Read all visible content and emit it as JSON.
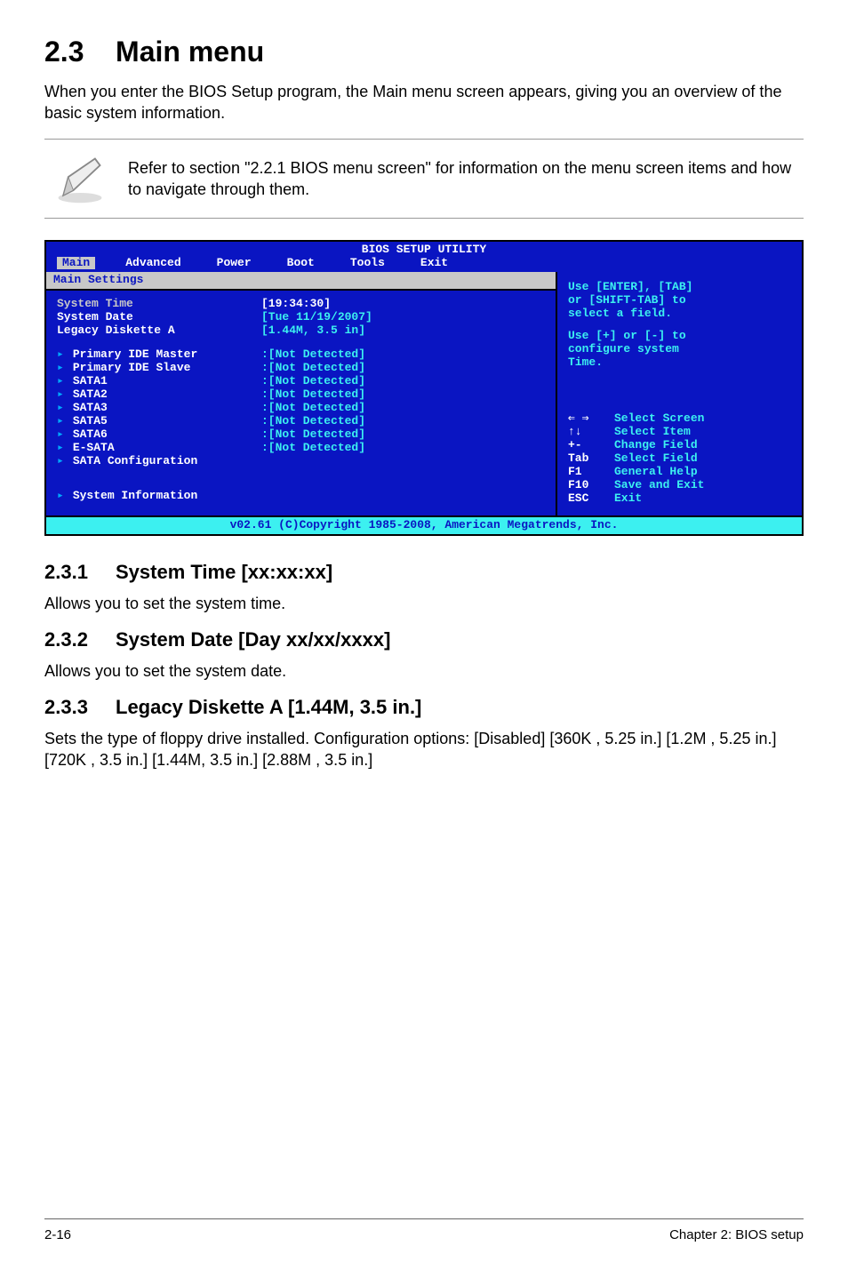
{
  "heading": {
    "num": "2.3",
    "title": "Main menu"
  },
  "intro": "When you enter the BIOS Setup program, the Main menu screen appears, giving you an overview of the basic system information.",
  "note": "Refer to section \"2.2.1 BIOS menu screen\" for information on the menu screen items and how to navigate through them.",
  "bios": {
    "title": "BIOS SETUP UTILITY",
    "tabs": [
      "Main",
      "Advanced",
      "Power",
      "Boot",
      "Tools",
      "Exit"
    ],
    "active_tab": "Main",
    "panel_header": "Main Settings",
    "rows_top": [
      {
        "label": "System Time",
        "value": "[19:34:30]",
        "selected": true
      },
      {
        "label": "System Date",
        "value": "[Tue 11/19/2007]"
      },
      {
        "label": "Legacy Diskette A",
        "value": "[1.44M, 3.5 in]"
      }
    ],
    "rows_list": [
      {
        "label": "Primary IDE Master",
        "value": ":[Not Detected]"
      },
      {
        "label": "Primary IDE Slave",
        "value": ":[Not Detected]"
      },
      {
        "label": "SATA1",
        "value": ":[Not Detected]"
      },
      {
        "label": "SATA2",
        "value": ":[Not Detected]"
      },
      {
        "label": "SATA3",
        "value": ":[Not Detected]"
      },
      {
        "label": "SATA5",
        "value": ":[Not Detected]"
      },
      {
        "label": "SATA6",
        "value": ":[Not Detected]"
      },
      {
        "label": "E-SATA",
        "value": ":[Not Detected]"
      },
      {
        "label": "SATA Configuration",
        "value": ""
      }
    ],
    "rows_bottom": [
      {
        "label": "System Information",
        "value": ""
      }
    ],
    "help_top1": "Use [ENTER], [TAB]",
    "help_top2": "or [SHIFT-TAB] to",
    "help_top3": "select a field.",
    "help_mid1": "Use [+] or [-] to",
    "help_mid2": "configure system",
    "help_mid3": "Time.",
    "help_keys": [
      {
        "k": "⇐ ⇒",
        "d": "Select Screen"
      },
      {
        "k": "↑↓",
        "d": "Select Item"
      },
      {
        "k": "+-",
        "d": "Change Field"
      },
      {
        "k": "Tab",
        "d": "Select Field"
      },
      {
        "k": "F1",
        "d": "General Help"
      },
      {
        "k": "F10",
        "d": "Save and Exit"
      },
      {
        "k": "ESC",
        "d": "Exit"
      }
    ],
    "footer": "v02.61 (C)Copyright 1985-2008, American Megatrends, Inc."
  },
  "subs": [
    {
      "num": "2.3.1",
      "title": "System Time [xx:xx:xx]",
      "body": "Allows you to set the system time."
    },
    {
      "num": "2.3.2",
      "title": "System Date [Day xx/xx/xxxx]",
      "body": "Allows you to set the system date."
    },
    {
      "num": "2.3.3",
      "title": "Legacy Diskette A [1.44M, 3.5 in.]",
      "body": "Sets the type of floppy drive installed. Configuration options: [Disabled] [360K , 5.25 in.] [1.2M , 5.25 in.] [720K , 3.5 in.] [1.44M, 3.5 in.] [2.88M , 3.5 in.]"
    }
  ],
  "footer_left": "2-16",
  "footer_right": "Chapter 2: BIOS setup",
  "colors": {
    "bios_bg": "#0a15c2",
    "bios_header_bg": "#c8c8c8",
    "bios_cyan": "#3cf0f0"
  }
}
